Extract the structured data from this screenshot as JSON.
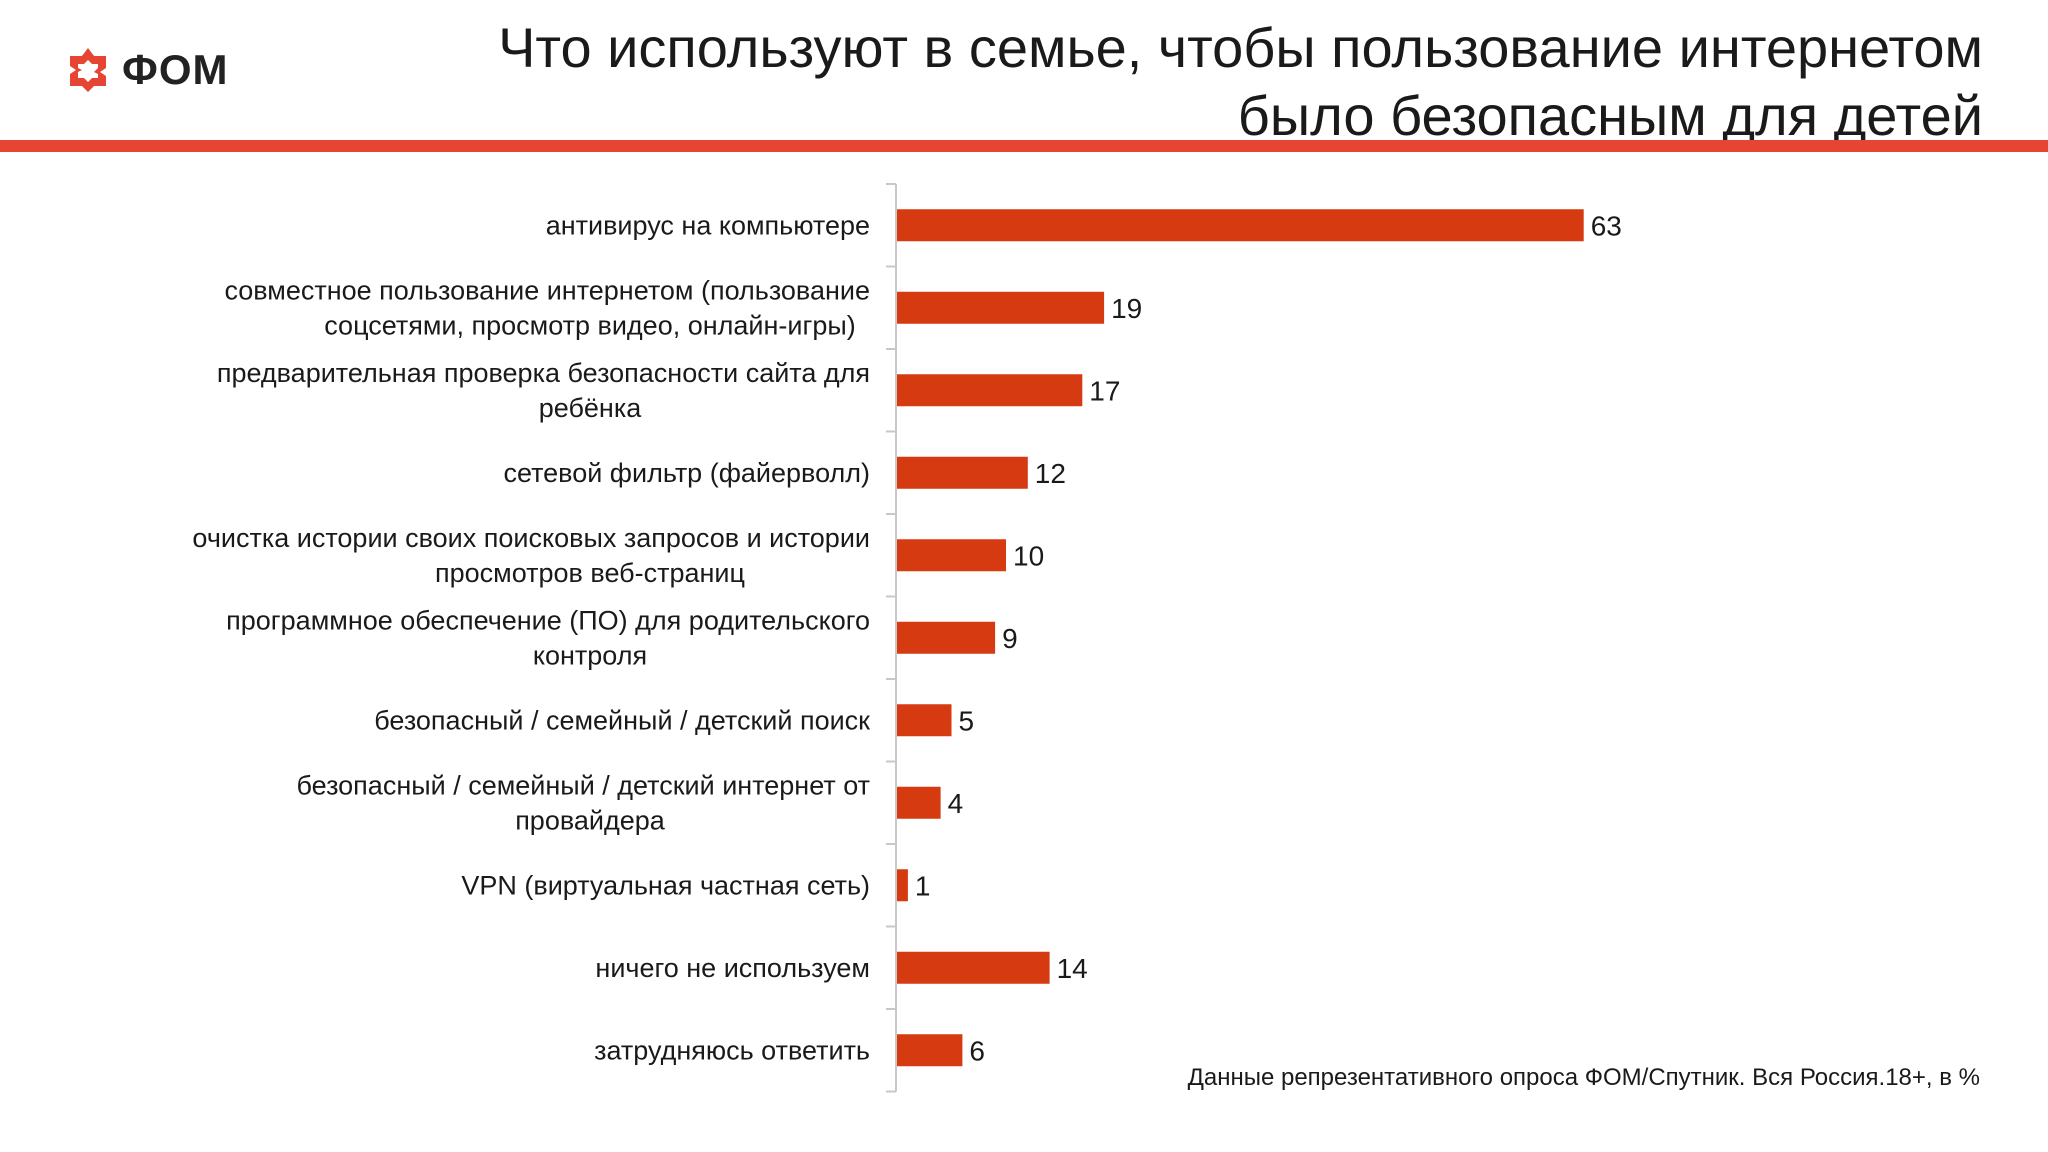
{
  "logo": {
    "text": "ФОМ",
    "icon": "fom-logo-icon",
    "color": "#e64533"
  },
  "title": {
    "line1": "Что используют в семье, чтобы пользование интернетом",
    "line2": "было безопасным для детей"
  },
  "colors": {
    "accent": "#e64533",
    "bar": "#d63a10",
    "axis": "#c8c8c8"
  },
  "chart_data": {
    "type": "bar",
    "orientation": "horizontal",
    "categories": [
      [
        "антивирус на компьютере"
      ],
      [
        "совместное пользование интернетом (пользование",
        "соцсетями, просмотр видео, онлайн-игры)"
      ],
      [
        "предварительная проверка безопасности сайта для",
        "ребёнка"
      ],
      [
        "сетевой фильтр (файерволл)"
      ],
      [
        "очистка истории своих поисковых запросов и истории",
        "просмотров веб-страниц"
      ],
      [
        "программное обеспечение (ПО) для родительского",
        "контроля"
      ],
      [
        "безопасный / семейный / детский поиск"
      ],
      [
        "безопасный / семейный / детский интернет от",
        "провайдера"
      ],
      [
        "VPN (виртуальная частная сеть)"
      ],
      [
        "ничего не используем"
      ],
      [
        "затрудняюсь ответить"
      ]
    ],
    "values": [
      63,
      19,
      17,
      12,
      10,
      9,
      5,
      4,
      1,
      14,
      6
    ],
    "xlim": [
      0,
      100
    ],
    "grid": false,
    "legend": false,
    "data_labels": true
  },
  "source_note": "Данные репрезентативного опроса ФОМ/Спутник. Вся Россия.18+, в %"
}
